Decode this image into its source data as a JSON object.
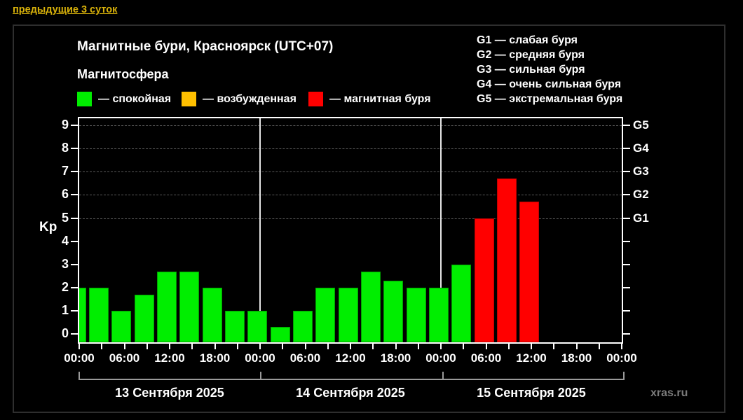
{
  "link": {
    "label": "предыдущие 3 суток"
  },
  "chart": {
    "title": "Магнитные бури, Красноярск (UTC+07)",
    "subtitle": "Магнитосфера",
    "legend": [
      {
        "key": "quiet",
        "label": "— спокойная",
        "color": "#00ee00"
      },
      {
        "key": "excited",
        "label": "— возбужденная",
        "color": "#ffc000"
      },
      {
        "key": "storm",
        "label": "— магнитная буря",
        "color": "#ff0000"
      }
    ],
    "storm_scale": [
      {
        "label": "G1 — слабая буря"
      },
      {
        "label": "G2 — средняя буря"
      },
      {
        "label": "G3 — сильная буря"
      },
      {
        "label": "G4 — очень сильная буря"
      },
      {
        "label": "G5 — экстремальная буря"
      }
    ],
    "watermark": "xras.ru"
  },
  "chart_data": {
    "type": "bar",
    "title": "Магнитные бури, Красноярск (UTC+07)",
    "ylabel": "Kp",
    "ylim": [
      0,
      9.4
    ],
    "yticks": [
      0,
      1,
      2,
      3,
      4,
      5,
      6,
      7,
      8,
      9
    ],
    "gridlines_at": [
      5,
      6,
      7,
      8,
      9
    ],
    "right_axis": [
      {
        "value": 5,
        "label": "G1"
      },
      {
        "value": 6,
        "label": "G2"
      },
      {
        "value": 7,
        "label": "G3"
      },
      {
        "value": 8,
        "label": "G4"
      },
      {
        "value": 9,
        "label": "G5"
      }
    ],
    "time_tick_labels": [
      "00:00",
      "06:00",
      "12:00",
      "18:00"
    ],
    "hours_per_bar": 3,
    "days": [
      {
        "date": "13 Сентября 2025",
        "values": [
          2,
          2,
          1,
          1.7,
          2.7,
          2.7,
          2,
          1
        ]
      },
      {
        "date": "14 Сентября 2025",
        "values": [
          1,
          0.3,
          1,
          2,
          2,
          2.7,
          2.3,
          2
        ]
      },
      {
        "date": "15 Сентября 2025",
        "values": [
          2,
          3,
          5,
          6.7,
          5.7,
          null,
          null,
          null
        ]
      }
    ],
    "color_rule": {
      "quiet_below": 3.5,
      "excited_below": 4.5
    },
    "colors": {
      "quiet": "#00ee00",
      "excited": "#ffc000",
      "storm": "#ff0000"
    }
  }
}
